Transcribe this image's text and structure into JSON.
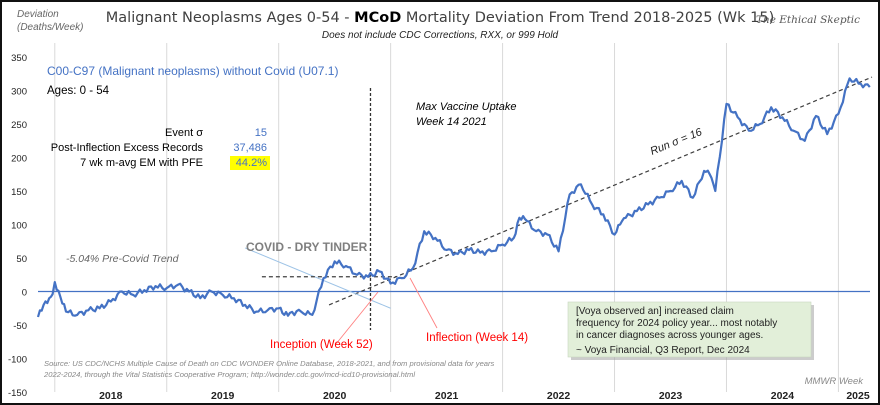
{
  "chart_data": {
    "type": "line",
    "title_pre": "Malignant Neoplasms Ages 0-54 - ",
    "title_bold": "MCoD",
    "title_post": " Mortality Deviation From Trend  2018-2025 (Wk 15)",
    "subtitle": "Does not include CDC Corrections,  RXX, or 999 Hold",
    "brand": "The Ethical Skeptic",
    "ylabel_line1": "Deviation",
    "ylabel_line2": "(Deaths/Week)",
    "xlabel": "MMWR Week",
    "ylim": [
      -150,
      350
    ],
    "yticks": [
      350,
      300,
      250,
      200,
      150,
      100,
      50,
      0,
      -50,
      -100,
      -150
    ],
    "xlim": [
      2017.85,
      2025.3
    ],
    "x_categories": [
      "2018",
      "2019",
      "2020",
      "2021",
      "2022",
      "2023",
      "2024",
      "2025"
    ],
    "series": [
      {
        "name": "C00-C97 (Malignant neoplasms) without Covid (U07.1)",
        "color": "#4472C4",
        "x": [
          2017.85,
          2017.9,
          2017.95,
          2017.98,
          2018.0,
          2018.05,
          2018.1,
          2018.2,
          2018.3,
          2018.4,
          2018.5,
          2018.6,
          2018.7,
          2018.8,
          2018.9,
          2019.0,
          2019.1,
          2019.2,
          2019.3,
          2019.4,
          2019.5,
          2019.6,
          2019.7,
          2019.8,
          2019.9,
          2020.0,
          2020.05,
          2020.1,
          2020.2,
          2020.3,
          2020.4,
          2020.5,
          2020.6,
          2020.7,
          2020.8,
          2020.9,
          2021.0,
          2021.1,
          2021.2,
          2021.3,
          2021.4,
          2021.5,
          2021.6,
          2021.7,
          2021.8,
          2021.9,
          2022.0,
          2022.1,
          2022.15,
          2022.2,
          2022.3,
          2022.4,
          2022.5,
          2022.6,
          2022.7,
          2022.8,
          2022.9,
          2023.0,
          2023.05,
          2023.1,
          2023.2,
          2023.3,
          2023.4,
          2023.5,
          2023.6,
          2023.7,
          2023.8,
          2023.85,
          2023.9,
          2024.0,
          2024.1,
          2024.2,
          2024.3,
          2024.4,
          2024.5,
          2024.6,
          2024.7,
          2024.8,
          2024.9,
          2025.0,
          2025.1,
          2025.2,
          2025.28
        ],
        "values": [
          -38,
          -20,
          -10,
          -4,
          14,
          -8,
          -30,
          -35,
          -28,
          -25,
          -15,
          0,
          -5,
          2,
          8,
          5,
          10,
          0,
          -10,
          0,
          -5,
          -10,
          -20,
          -30,
          -28,
          -25,
          -35,
          -32,
          -30,
          -35,
          20,
          45,
          38,
          25,
          22,
          30,
          12,
          20,
          35,
          90,
          80,
          62,
          56,
          62,
          58,
          60,
          70,
          80,
          110,
          108,
          90,
          85,
          60,
          145,
          160,
          130,
          115,
          85,
          100,
          110,
          120,
          130,
          140,
          150,
          165,
          140,
          180,
          175,
          150,
          280,
          260,
          240,
          250,
          275,
          260,
          240,
          225,
          262,
          235,
          265,
          318,
          310,
          305
        ]
      }
    ],
    "trend_lines": [
      {
        "name": "Run sigma trend",
        "label": "Run σ = 16",
        "x": [
          2020.45,
          2025.3
        ],
        "values": [
          -20,
          320
        ]
      },
      {
        "name": "Dry tinder decline",
        "x": [
          2019.7,
          2021.0
        ],
        "values": [
          65,
          -25
        ]
      },
      {
        "name": "Horizontal reference",
        "x": [
          2019.85,
          2021.05
        ],
        "values": [
          22,
          22
        ]
      }
    ],
    "vertical_marker": {
      "label_line1": "Max Vaccine Uptake",
      "label_line2": "Week 14 2021",
      "x": 2020.82
    },
    "annotations": {
      "series_label": "C00-C97 (Malignant neoplasms) without Covid (U07.1)",
      "ages": "Ages: 0 - 54",
      "stats": [
        {
          "label": "Event σ",
          "value": "15"
        },
        {
          "label": "Post-Inflection Excess Records",
          "value": "37,486"
        },
        {
          "label": "7 wk m-avg EM with PFE",
          "value": "44.2%"
        }
      ],
      "pre_covid_trend": "-5.04% Pre-Covid Trend",
      "dry_tinder": "COVID - DRY TINDER",
      "inception": "Inception (Week 52)",
      "inflection": "Inflection (Week 14)",
      "source_line1": "Source: US CDC/NCHS Multiple Cause of Death on CDC WONDER Online Database, 2018-2021, and from provisional data for years",
      "source_line2": "2022-2024, through the Vital Statistics Cooperative Program; http://wonder.cdc.gov/mcd-icd10-provisional.html",
      "quote_line1": "[Voya observed  an] increased claim",
      "quote_line2": "frequency for 2024 policy year... most notably",
      "quote_line3": "in cancer diagnoses across younger ages.",
      "quote_attribution": "~ Voya Financial, Q3 Report, Dec 2024"
    },
    "colors": {
      "series": "#4472C4",
      "zero_line": "#4472C4",
      "trend": "#404040",
      "tinder_line": "#9DC3E6",
      "red": "#FF0000",
      "highlight": "#FFFF00",
      "quote_bg": "#E2EFD9",
      "stat_value": "#4472C4"
    },
    "grid": "vertical-years"
  }
}
